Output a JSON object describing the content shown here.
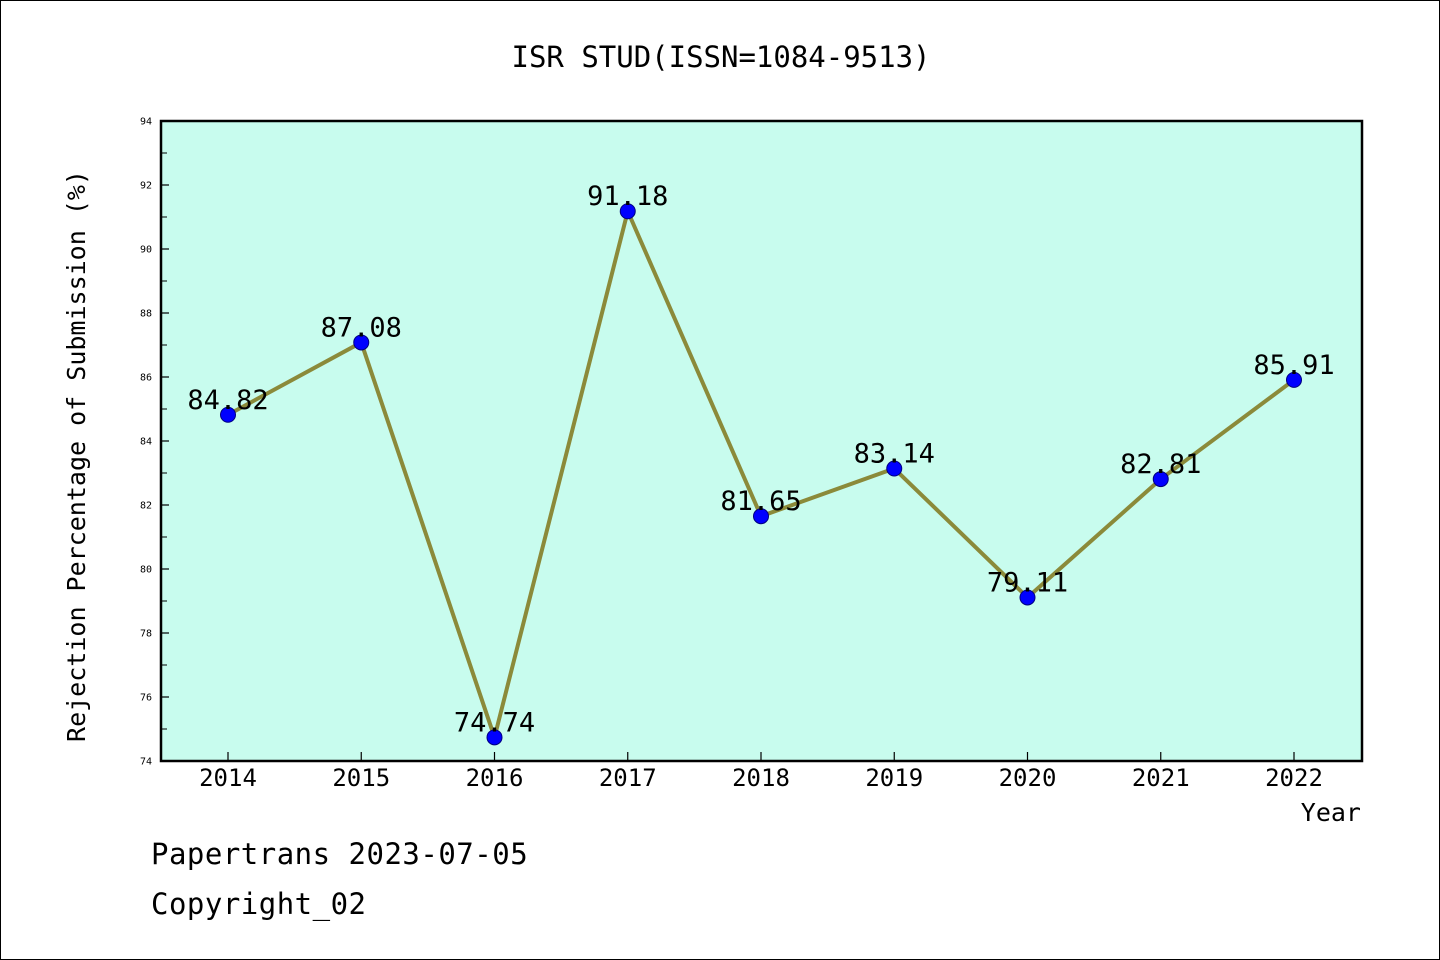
{
  "colors": {
    "plot_background": "#c8fcee",
    "line": "#8b8a3a",
    "marker_fill": "#0000ff",
    "marker_stroke": "#000080",
    "axis": "#000000"
  },
  "chart_data": {
    "type": "line",
    "title": "ISR STUD(ISSN=1084-9513)",
    "xlabel": "Year",
    "ylabel": "Rejection Percentage of Submission (%)",
    "categories": [
      "2014",
      "2015",
      "2016",
      "2017",
      "2018",
      "2019",
      "2020",
      "2021",
      "2022"
    ],
    "values": [
      84.82,
      87.08,
      74.74,
      91.18,
      81.65,
      83.14,
      79.11,
      82.81,
      85.91
    ],
    "data_labels": [
      "84.82",
      "87.08",
      "74.74",
      "91.18",
      "81.65",
      "83.14",
      "79.11",
      "82.81",
      "85.91"
    ],
    "ylim": [
      74,
      94
    ],
    "yticks": [
      "74",
      "76",
      "78",
      "80",
      "82",
      "84",
      "86",
      "88",
      "90",
      "92",
      "94"
    ],
    "marker": "circle",
    "grid": false,
    "legend": "none"
  },
  "footer": {
    "line1": "Papertrans 2023-07-05",
    "line2": "Copyright_02"
  }
}
